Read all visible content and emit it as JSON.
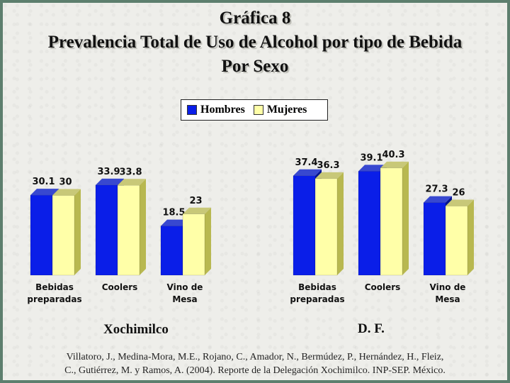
{
  "title": {
    "line1": "Gráfica 8",
    "line2": "Prevalencia Total de Uso de Alcohol por tipo de Bebida",
    "line3": "Por Sexo"
  },
  "legend": {
    "hombres": "Hombres",
    "mujeres": "Mujeres"
  },
  "colors": {
    "hombres_front": "#0a1ee8",
    "hombres_side": "#061590",
    "hombres_top": "#3848d0",
    "mujeres_front": "#ffffa8",
    "mujeres_side": "#b8b850",
    "mujeres_top": "#c8c878"
  },
  "chart_data": [
    {
      "type": "bar",
      "group": "Xochimilco",
      "categories": [
        "Bebidas\npreparadas",
        "Coolers",
        "Vino de\nMesa"
      ],
      "series": [
        {
          "name": "Hombres",
          "values": [
            30.1,
            33.9,
            18.5
          ],
          "labels": [
            "30.1",
            "33.9",
            "18.5"
          ]
        },
        {
          "name": "Mujeres",
          "values": [
            30,
            33.8,
            23
          ],
          "labels": [
            "30",
            "33.8",
            "23"
          ]
        }
      ]
    },
    {
      "type": "bar",
      "group": "D. F.",
      "categories": [
        "Bebidas\npreparadas",
        "Coolers",
        "Vino de\nMesa"
      ],
      "series": [
        {
          "name": "Hombres",
          "values": [
            37.4,
            39.1,
            27.3
          ],
          "labels": [
            "37.4",
            "39.1",
            "27.3"
          ]
        },
        {
          "name": "Mujeres",
          "values": [
            36.3,
            40.3,
            26
          ],
          "labels": [
            "36.3",
            "40.3",
            "26"
          ]
        }
      ]
    }
  ],
  "group_labels": {
    "left": "Xochimilco",
    "right": "D. F."
  },
  "citation": {
    "line1": "Villatoro, J., Medina-Mora, M.E., Rojano, C., Amador, N., Bermúdez, P., Hernández, H., Fleiz,",
    "line2": "C., Gutiérrez, M. y Ramos, A. (2004). Reporte de la Delegación Xochimilco. INP-SEP. México."
  }
}
